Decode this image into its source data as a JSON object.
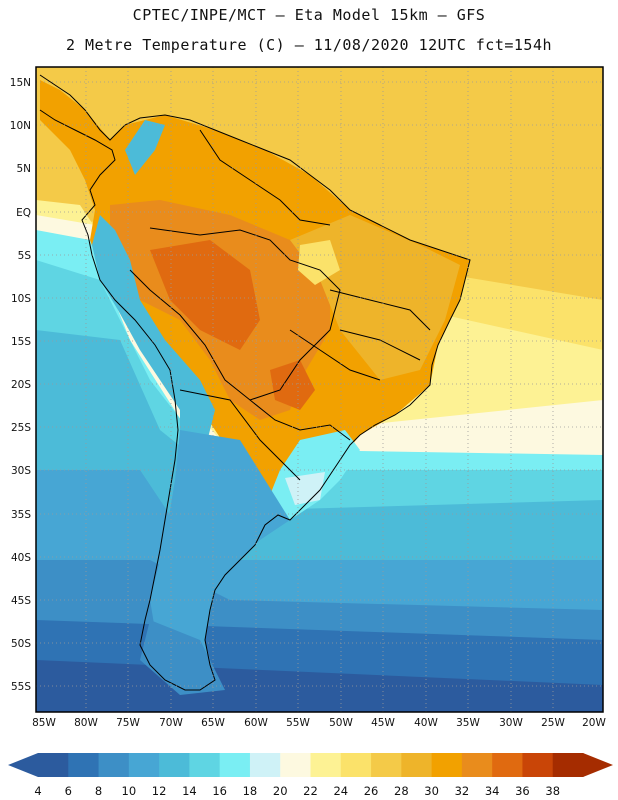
{
  "header": {
    "line1": "CPTEC/INPE/MCT –  Eta Model 15km – GFS",
    "line2": "2 Metre Temperature (C) – 11/08/2020 12UTC fct=154h"
  },
  "lat_labels": [
    "15N",
    "10N",
    "5N",
    "EQ",
    "5S",
    "10S",
    "15S",
    "20S",
    "25S",
    "30S",
    "35S",
    "40S",
    "45S",
    "50S",
    "55S"
  ],
  "lon_labels": [
    "85W",
    "80W",
    "75W",
    "70W",
    "65W",
    "60W",
    "55W",
    "50W",
    "45W",
    "40W",
    "35W",
    "30W",
    "25W",
    "20W"
  ],
  "colorbar": {
    "labels": [
      "4",
      "6",
      "8",
      "10",
      "12",
      "14",
      "16",
      "18",
      "20",
      "22",
      "24",
      "26",
      "28",
      "30",
      "32",
      "34",
      "36",
      "38"
    ],
    "colors": [
      "#2c5b9e",
      "#2f73b4",
      "#3d8fc6",
      "#47a6d4",
      "#4cbbd8",
      "#5fd5e3",
      "#7aeef3",
      "#cff2f7",
      "#fdf9e0",
      "#fdf294",
      "#fbe26a",
      "#f4ca48",
      "#eeb42a",
      "#f2a100",
      "#e98c1c",
      "#e06a10",
      "#c94507",
      "#a52c00"
    ]
  }
}
